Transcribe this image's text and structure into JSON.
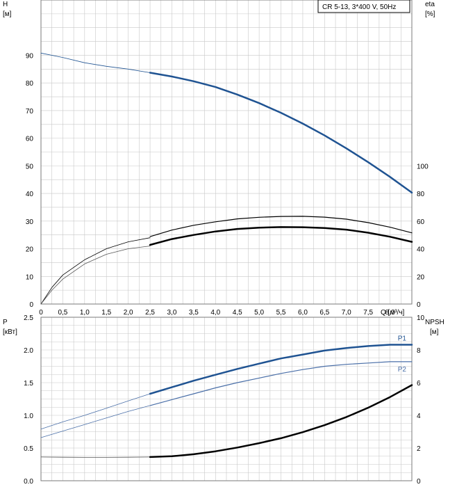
{
  "legend": {
    "text": "CR 5-13, 3*400 V, 50Hz"
  },
  "colors": {
    "blue": "#1f5392",
    "blue_light": "#4a6fa8",
    "black": "#000000",
    "gray_line": "#555555",
    "grid": "#c8c8c8"
  },
  "chart_data": [
    {
      "type": "line",
      "name_ref": "head-efficiency",
      "y_left_label": [
        "H",
        "[м]"
      ],
      "y_right_label": [
        "eta",
        "[%]"
      ],
      "x_label": "Q [м³/ч]",
      "x_ticks": [
        "0",
        "0,5",
        "1,0",
        "1,5",
        "2,0",
        "2,5",
        "3,0",
        "3,5",
        "4,0",
        "4,5",
        "5,0",
        "5,5",
        "6,0",
        "6,5",
        "7,0",
        "7,5",
        "8,0"
      ],
      "x_range": [
        0,
        8.5
      ],
      "y_left_ticks": [
        "0",
        "10",
        "20",
        "30",
        "40",
        "50",
        "60",
        "70",
        "80",
        "90"
      ],
      "y_left_range": [
        0,
        110
      ],
      "y_right_ticks": [
        "0",
        "20",
        "40",
        "60",
        "80",
        "100"
      ],
      "y_right_range": [
        0,
        220
      ],
      "grid": true,
      "series": [
        {
          "key": "H_thin",
          "axis": "left",
          "color": "#1f5392",
          "width": 0.8,
          "x": [
            0,
            0.5,
            1.0,
            1.5,
            2.0,
            2.5
          ],
          "y": [
            90.8,
            89.2,
            87.3,
            86.0,
            85.0,
            83.7
          ]
        },
        {
          "key": "H",
          "axis": "left",
          "color": "#1f5392",
          "width": 2.5,
          "x": [
            2.5,
            3.0,
            3.5,
            4.0,
            4.5,
            5.0,
            5.5,
            6.0,
            6.5,
            7.0,
            7.5,
            8.0,
            8.5
          ],
          "y": [
            83.7,
            82.3,
            80.6,
            78.5,
            75.8,
            72.7,
            69.2,
            65.3,
            61.0,
            56.3,
            51.3,
            46.0,
            40.3
          ]
        },
        {
          "key": "eta1_thin",
          "axis": "right",
          "color": "#000000",
          "width": 0.8,
          "x": [
            0,
            0.25,
            0.5,
            1.0,
            1.5,
            2.0,
            2.5
          ],
          "y": [
            0,
            12,
            21,
            32,
            40,
            45,
            48
          ]
        },
        {
          "key": "eta1",
          "axis": "right",
          "color": "#000000",
          "width": 1.2,
          "x": [
            2.5,
            3.0,
            3.5,
            4.0,
            4.5,
            5.0,
            5.5,
            6.0,
            6.5,
            7.0,
            7.5,
            8.0,
            8.5
          ],
          "y": [
            48.8,
            53.5,
            57.0,
            59.5,
            61.6,
            62.8,
            63.4,
            63.5,
            62.9,
            61.4,
            58.9,
            55.6,
            51.5
          ]
        },
        {
          "key": "eta2_thin",
          "axis": "right",
          "color": "#555555",
          "width": 0.8,
          "x": [
            0,
            0.25,
            0.5,
            1.0,
            1.5,
            2.0,
            2.5
          ],
          "y": [
            0,
            10,
            18,
            29,
            36,
            40,
            42
          ]
        },
        {
          "key": "eta2",
          "axis": "right",
          "color": "#000000",
          "width": 2.5,
          "x": [
            2.5,
            3.0,
            3.5,
            4.0,
            4.5,
            5.0,
            5.5,
            6.0,
            6.5,
            7.0,
            7.5,
            8.0,
            8.5
          ],
          "y": [
            42.8,
            47.0,
            50.0,
            52.5,
            54.3,
            55.3,
            55.7,
            55.6,
            55.0,
            53.8,
            51.6,
            48.7,
            45.0
          ]
        }
      ]
    },
    {
      "type": "line",
      "name_ref": "power-npsh",
      "y_left_label": [
        "P",
        "[кВт]"
      ],
      "y_right_label": [
        "NPSH",
        "[м]"
      ],
      "x_range": [
        0,
        8.5
      ],
      "y_left_ticks": [
        "0.0",
        "0.5",
        "1.0",
        "1.5",
        "2.0",
        "2.5"
      ],
      "y_left_range": [
        0,
        2.5
      ],
      "y_right_ticks": [
        "0",
        "2",
        "4",
        "6",
        "8",
        "10"
      ],
      "y_right_range": [
        0,
        10
      ],
      "grid": true,
      "series": [
        {
          "key": "P1_thin",
          "name": "P1",
          "axis": "left",
          "color": "#4a6fa8",
          "width": 0.8,
          "x": [
            0,
            0.5,
            1.0,
            1.5,
            2.0,
            2.5
          ],
          "y": [
            0.79,
            0.9,
            1.0,
            1.11,
            1.22,
            1.33
          ]
        },
        {
          "key": "P1",
          "name": "P1",
          "axis": "left",
          "color": "#1f5392",
          "width": 2.5,
          "x": [
            2.5,
            3.0,
            3.5,
            4.0,
            4.5,
            5.0,
            5.5,
            6.0,
            6.5,
            7.0,
            7.5,
            8.0,
            8.5
          ],
          "y": [
            1.33,
            1.43,
            1.53,
            1.62,
            1.71,
            1.79,
            1.87,
            1.93,
            1.99,
            2.03,
            2.06,
            2.08,
            2.08
          ]
        },
        {
          "key": "P2_thin",
          "name": "P2",
          "axis": "left",
          "color": "#4a6fa8",
          "width": 0.8,
          "x": [
            0,
            0.5,
            1.0,
            1.5,
            2.0,
            2.5
          ],
          "y": [
            0.66,
            0.76,
            0.86,
            0.96,
            1.06,
            1.15
          ]
        },
        {
          "key": "P2",
          "name": "P2",
          "axis": "left",
          "color": "#4a6fa8",
          "width": 1.2,
          "x": [
            2.5,
            3.0,
            3.5,
            4.0,
            4.5,
            5.0,
            5.5,
            6.0,
            6.5,
            7.0,
            7.5,
            8.0,
            8.5
          ],
          "y": [
            1.15,
            1.24,
            1.33,
            1.42,
            1.5,
            1.57,
            1.64,
            1.7,
            1.75,
            1.78,
            1.8,
            1.82,
            1.82
          ]
        },
        {
          "key": "NPSH_thin",
          "axis": "right",
          "color": "#555555",
          "width": 0.8,
          "x": [
            0,
            0.5,
            1.0,
            1.5,
            2.0,
            2.5
          ],
          "y": [
            1.45,
            1.44,
            1.43,
            1.43,
            1.44,
            1.45
          ]
        },
        {
          "key": "NPSH",
          "axis": "right",
          "color": "#000000",
          "width": 2.5,
          "x": [
            2.5,
            3.0,
            3.5,
            4.0,
            4.5,
            5.0,
            5.5,
            6.0,
            6.5,
            7.0,
            7.5,
            8.0,
            8.5
          ],
          "y": [
            1.45,
            1.5,
            1.62,
            1.8,
            2.03,
            2.3,
            2.6,
            2.97,
            3.4,
            3.9,
            4.47,
            5.12,
            5.85
          ]
        }
      ],
      "labels": [
        {
          "text": "P1",
          "series": "P1"
        },
        {
          "text": "P2",
          "series": "P2"
        }
      ]
    }
  ]
}
